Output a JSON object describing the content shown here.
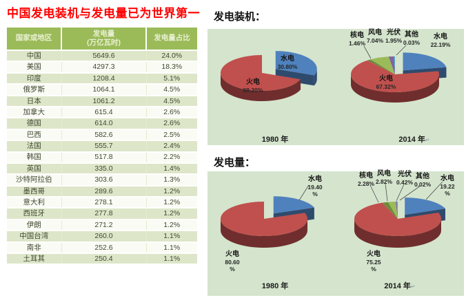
{
  "title": "中国发电装机与发电量已为世界第一",
  "table": {
    "headers": [
      "国家或地区",
      "发电量\n(万亿瓦时)",
      "发电量占比"
    ],
    "rows": [
      [
        "中国",
        "5649.6",
        "24.0%"
      ],
      [
        "美国",
        "4297.3",
        "18.3%"
      ],
      [
        "印度",
        "1208.4",
        "5.1%"
      ],
      [
        "俄罗斯",
        "1064.1",
        "4.5%"
      ],
      [
        "日本",
        "1061.2",
        "4.5%"
      ],
      [
        "加拿大",
        "615.4",
        "2.6%"
      ],
      [
        "德国",
        "614.0",
        "2.6%"
      ],
      [
        "巴西",
        "582.6",
        "2.5%"
      ],
      [
        "法国",
        "555.7",
        "2.4%"
      ],
      [
        "韩国",
        "517.8",
        "2.2%"
      ],
      [
        "英国",
        "335.0",
        "1.4%"
      ],
      [
        "沙特阿拉伯",
        "303.6",
        "1.3%"
      ],
      [
        "墨西哥",
        "289.6",
        "1.2%"
      ],
      [
        "意大利",
        "278.1",
        "1.2%"
      ],
      [
        "西班牙",
        "277.8",
        "1.2%"
      ],
      [
        "伊朗",
        "271.2",
        "1.2%"
      ],
      [
        "中国台湾",
        "260.0",
        "1.1%"
      ],
      [
        "南非",
        "252.6",
        "1.1%"
      ],
      [
        "土耳其",
        "250.4",
        "1.1%"
      ]
    ]
  },
  "sections": {
    "capacity": {
      "label": "发电装机："
    },
    "generation": {
      "label": "发电量："
    }
  },
  "chart_data": [
    {
      "type": "pie",
      "panel": "发电装机",
      "year": "1980 年",
      "series": [
        {
          "name": "水电",
          "value": 30.8,
          "label": "30.80%"
        },
        {
          "name": "火电",
          "value": 69.2,
          "label": "69.20%"
        }
      ]
    },
    {
      "type": "pie",
      "panel": "发电装机",
      "year": "2014 年",
      "series": [
        {
          "name": "水电",
          "value": 22.19,
          "label": "22.19%"
        },
        {
          "name": "火电",
          "value": 67.32,
          "label": "67.32%"
        },
        {
          "name": "核电",
          "value": 1.46,
          "label": "1.46%"
        },
        {
          "name": "风电",
          "value": 7.04,
          "label": "7.04%"
        },
        {
          "name": "光伏",
          "value": 1.95,
          "label": "1.95%"
        },
        {
          "name": "其他",
          "value": 0.03,
          "label": "0.03%"
        }
      ]
    },
    {
      "type": "pie",
      "panel": "发电量",
      "year": "1980 年",
      "series": [
        {
          "name": "水电",
          "value": 19.4,
          "label": "19.40\n%"
        },
        {
          "name": "火电",
          "value": 80.6,
          "label": "80.60\n%"
        }
      ]
    },
    {
      "type": "pie",
      "panel": "发电量",
      "year": "2014 年",
      "series": [
        {
          "name": "水电",
          "value": 19.22,
          "label": "19.22\n%"
        },
        {
          "name": "火电",
          "value": 75.25,
          "label": "75.25\n%"
        },
        {
          "name": "核电",
          "value": 2.28,
          "label": "2.28%"
        },
        {
          "name": "风电",
          "value": 2.82,
          "label": "2.82%"
        },
        {
          "name": "光伏",
          "value": 0.42,
          "label": "0.42%"
        },
        {
          "name": "其他",
          "value": 0.02,
          "label": "0.02%"
        }
      ]
    }
  ],
  "colors": {
    "series": {
      "水电": "#4F81BD",
      "火电": "#C0504D",
      "核电": "#6E8B3D",
      "风电": "#9BBB59",
      "光伏": "#8064A2",
      "其他": "#4BACC6"
    },
    "panel_bg": "#D4E4CD",
    "table_header_bg": "#9BBB59",
    "table_row_green": "#DDE6C8",
    "table_row_white": "#FAFBF4",
    "title_red": "#FF0000"
  }
}
